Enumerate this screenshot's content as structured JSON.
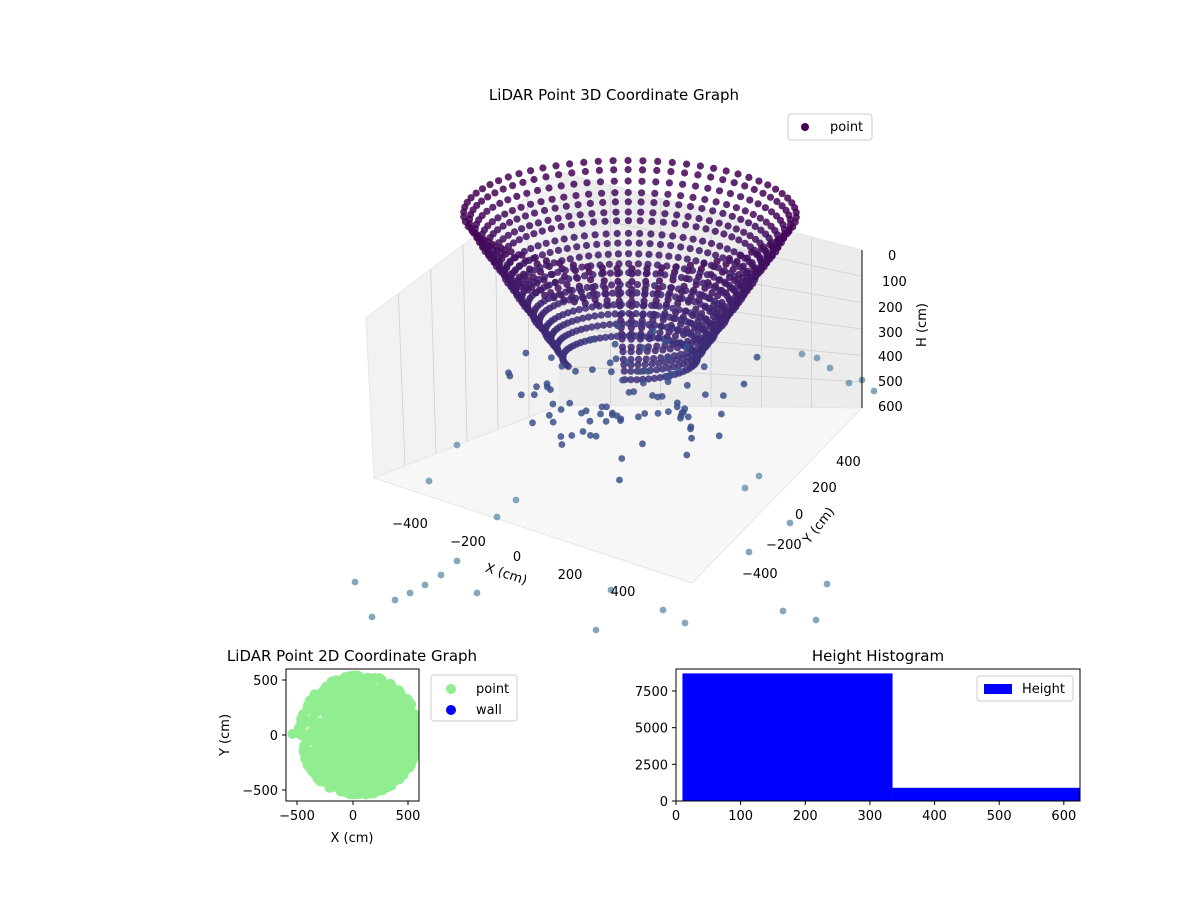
{
  "chart_data": [
    {
      "type": "scatter",
      "projection": "3d",
      "title": "LiDAR Point 3D Coordinate Graph",
      "xlabel": "X (cm)",
      "ylabel": "Y (cm)",
      "zlabel": "H (cm)",
      "x_ticks": [
        "−400",
        "−200",
        "0",
        "200",
        "400"
      ],
      "y_ticks": [
        "−400",
        "−200",
        "0",
        "200",
        "400"
      ],
      "z_ticks": [
        "0",
        "100",
        "200",
        "300",
        "400",
        "500",
        "600"
      ],
      "zlim": [
        600,
        0
      ],
      "z_inverted": true,
      "colormap": "viridis",
      "legend": {
        "entries": [
          "point"
        ],
        "placement": "top-right"
      },
      "series": [
        {
          "name": "point",
          "color": "#440154",
          "shape": "ring-stack",
          "center": [
            0,
            0
          ],
          "radius_cm": 500,
          "height_range_cm": [
            0,
            600
          ]
        }
      ]
    },
    {
      "type": "scatter",
      "title": "LiDAR Point 2D Coordinate Graph",
      "xlabel": "X (cm)",
      "ylabel": "Y (cm)",
      "xlim": [
        -600,
        600
      ],
      "ylim": [
        -600,
        600
      ],
      "x_ticks": [
        "−500",
        "0",
        "500"
      ],
      "y_ticks": [
        "500",
        "0",
        "−500"
      ],
      "legend": {
        "entries": [
          "point",
          "wall"
        ],
        "placement": "outside-right"
      },
      "series": [
        {
          "name": "point",
          "color": "#90ee90"
        },
        {
          "name": "wall",
          "color": "#0000ff",
          "values": []
        }
      ]
    },
    {
      "type": "bar",
      "title": "Height Histogram",
      "xlim": [
        0,
        625
      ],
      "ylim": [
        0,
        9000
      ],
      "x_ticks": [
        "0",
        "100",
        "200",
        "300",
        "400",
        "500",
        "600"
      ],
      "y_ticks": [
        "0",
        "2500",
        "5000",
        "7500"
      ],
      "legend": {
        "entries": [
          "Height"
        ],
        "placement": "top-right"
      },
      "series": [
        {
          "name": "Height",
          "color": "#0000ff",
          "bins": [
            {
              "start": 10,
              "end": 335,
              "count": 8700
            },
            {
              "start": 335,
              "end": 625,
              "count": 900
            }
          ]
        }
      ]
    }
  ]
}
